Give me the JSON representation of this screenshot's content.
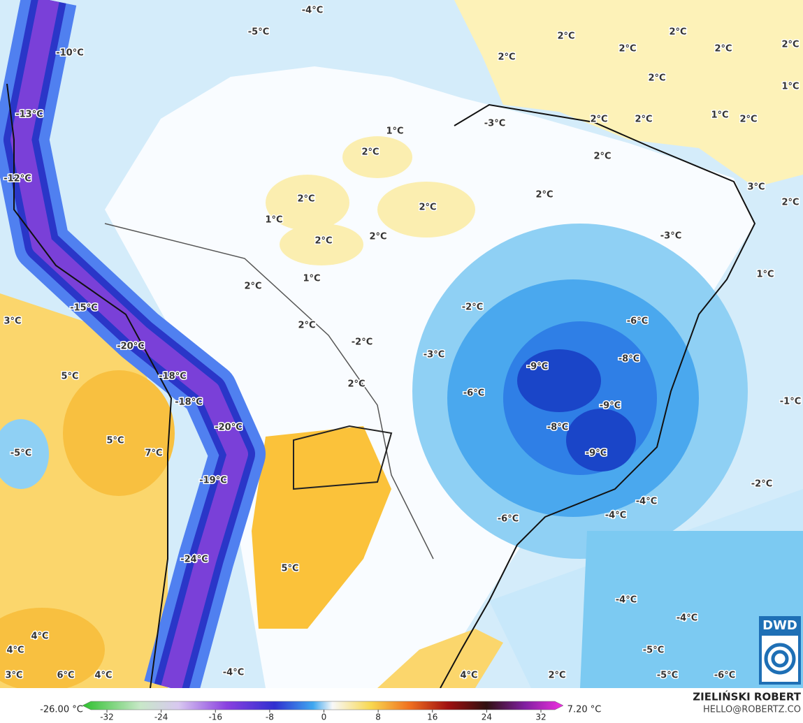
{
  "labels": [
    "-4°C",
    "-5°C",
    "-10°C",
    "2°C",
    "2°C",
    "2°C",
    "2°C",
    "2°C",
    "2°C",
    "2°C",
    "1°C",
    "-13°C",
    "-3°C",
    "2°C",
    "2°C",
    "1°C",
    "2°C",
    "1°C",
    "2°C",
    "2°C",
    "-12°C",
    "3°C",
    "2°C",
    "2°C",
    "2°C",
    "2°C",
    "1°C",
    "2°C",
    "2°C",
    "-3°C",
    "1°C",
    "1°C",
    "2°C",
    "-15°C",
    "-2°C",
    "3°C",
    "-6°C",
    "2°C",
    "-2°C",
    "-20°C",
    "-3°C",
    "-8°C",
    "-9°C",
    "5°C",
    "-18°C",
    "2°C",
    "-6°C",
    "-1°C",
    "-18°C",
    "-9°C",
    "-20°C",
    "-8°C",
    "5°C",
    "-5°C",
    "7°C",
    "-9°C",
    "-19°C",
    "-2°C",
    "-4°C",
    "-4°C",
    "-6°C",
    "-24°C",
    "5°C",
    "-4°C",
    "-4°C",
    "4°C",
    "4°C",
    "-5°C",
    "3°C",
    "6°C",
    "4°C",
    "-4°C",
    "4°C",
    "2°C",
    "-5°C",
    "-6°C"
  ],
  "colorbar": {
    "min_label": "-26.00 °C",
    "max_label": "7.20 °C",
    "ticks": [
      "-32",
      "-24",
      "-16",
      "-8",
      "0",
      "8",
      "16",
      "24",
      "32"
    ]
  },
  "credit": {
    "author": "ZIELIŃSKI ROBERT",
    "email": "HELLO@ROBERTZ.CO"
  },
  "logo": "DWD"
}
